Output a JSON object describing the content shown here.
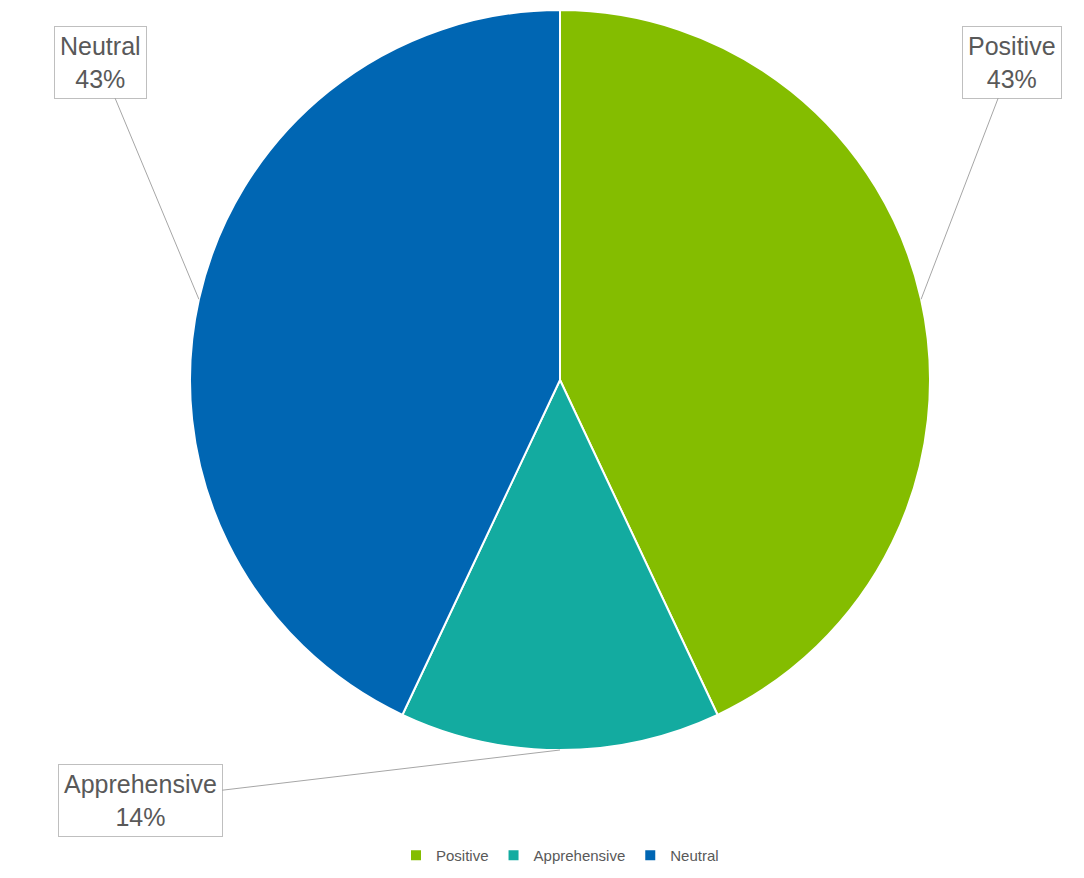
{
  "chart_data": {
    "type": "pie",
    "categories": [
      "Positive",
      "Apprehensive",
      "Neutral"
    ],
    "values": [
      43,
      14,
      43
    ],
    "value_labels": [
      "43%",
      "14%",
      "43%"
    ],
    "colors": [
      "#84bd00",
      "#13aba0",
      "#0066b3"
    ],
    "data_labels": true,
    "legend": "bottom"
  }
}
